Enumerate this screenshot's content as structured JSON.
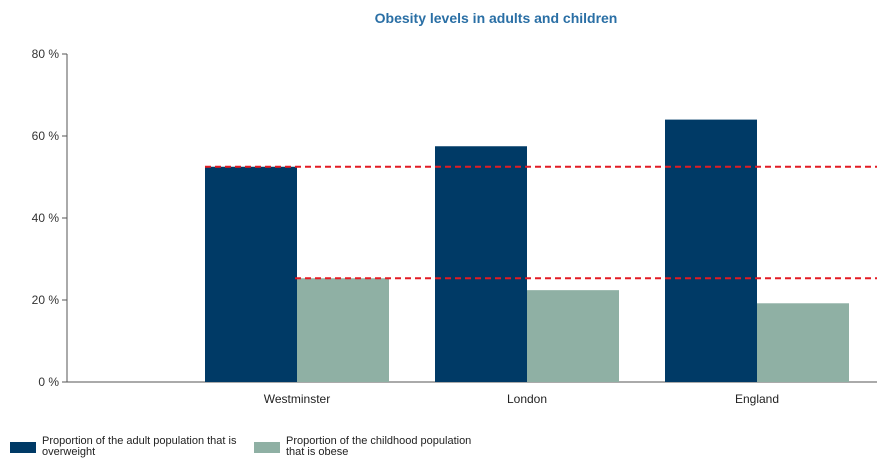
{
  "chart_data": {
    "type": "bar",
    "title": "Obesity levels in adults and children",
    "categories": [
      "Westminster",
      "London",
      "England"
    ],
    "series": [
      {
        "name": "Proportion of the adult population that is overweight",
        "values": [
          52.5,
          57.5,
          64
        ],
        "color": "#003a66"
      },
      {
        "name": "Proportion of the childhood population that is obese",
        "values": [
          25.3,
          22.4,
          19.2
        ],
        "color": "#8fb0a4"
      }
    ],
    "y_ticks": [
      "0 %",
      "20 %",
      "40 %",
      "60 %",
      "80 %"
    ],
    "y_tick_values": [
      0,
      20,
      40,
      60,
      80
    ],
    "ylim": [
      0,
      80
    ],
    "reference_lines": [
      {
        "value": 52.5,
        "color": "#e31b23",
        "style": "dashed"
      },
      {
        "value": 25.3,
        "color": "#e31b23",
        "style": "dashed"
      }
    ],
    "grid": false,
    "legend_position": "bottom-left"
  }
}
